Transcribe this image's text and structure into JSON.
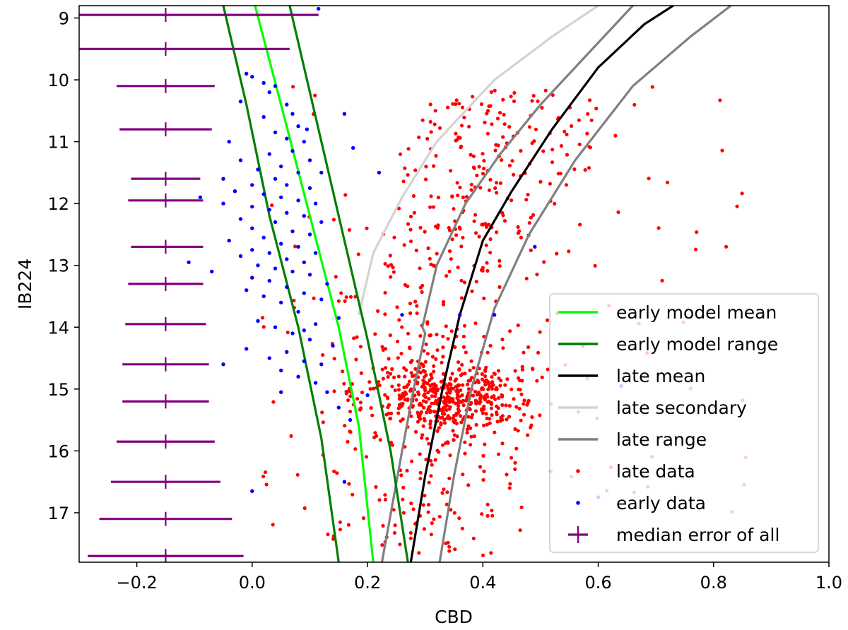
{
  "chart_data": {
    "type": "scatter",
    "xlabel": "CBD",
    "ylabel": "IB224",
    "xlim": [
      -0.3,
      1.0
    ],
    "ylim": [
      17.8,
      8.8
    ],
    "y_inverted": true,
    "grid": false,
    "legend_position": "lower-right",
    "x_ticks": [
      "−0.2",
      "0.0",
      "0.2",
      "0.4",
      "0.6",
      "0.8",
      "1.0"
    ],
    "x_tick_values": [
      -0.2,
      0.0,
      0.2,
      0.4,
      0.6,
      0.8,
      1.0
    ],
    "y_ticks": [
      "9",
      "10",
      "11",
      "12",
      "13",
      "14",
      "15",
      "16",
      "17"
    ],
    "y_tick_values": [
      9,
      10,
      11,
      12,
      13,
      14,
      15,
      16,
      17
    ],
    "colors": {
      "early_mean": "#00ff00",
      "early_range": "#007f00",
      "late_mean": "#000000",
      "late_secondary": "#d3d3d3",
      "late_range": "#808080",
      "late_data": "#ff0000",
      "early_data": "#0000ff",
      "median_error": "#800080"
    },
    "series": [
      {
        "name": "early model mean",
        "kind": "line",
        "color": "#00ff00",
        "points": [
          [
            0.005,
            8.8
          ],
          [
            0.05,
            10.4
          ],
          [
            0.1,
            12.2
          ],
          [
            0.15,
            14.0
          ],
          [
            0.185,
            15.6
          ],
          [
            0.21,
            17.8
          ]
        ]
      },
      {
        "name": "early model range",
        "kind": "line",
        "color": "#007f00",
        "part": "left",
        "points": [
          [
            -0.05,
            8.8
          ],
          [
            -0.01,
            10.4
          ],
          [
            0.03,
            12.2
          ],
          [
            0.08,
            14.0
          ],
          [
            0.12,
            15.8
          ],
          [
            0.15,
            17.8
          ]
        ]
      },
      {
        "name": "early model range",
        "kind": "line",
        "color": "#007f00",
        "part": "right",
        "points": [
          [
            0.065,
            8.8
          ],
          [
            0.1,
            10.2
          ],
          [
            0.15,
            12.2
          ],
          [
            0.2,
            14.2
          ],
          [
            0.24,
            16.0
          ],
          [
            0.27,
            17.8
          ]
        ]
      },
      {
        "name": "late mean",
        "kind": "line",
        "color": "#000000",
        "points": [
          [
            0.275,
            17.8
          ],
          [
            0.3,
            16.4
          ],
          [
            0.33,
            15.0
          ],
          [
            0.355,
            14.0
          ],
          [
            0.36,
            13.8
          ],
          [
            0.4,
            12.6
          ],
          [
            0.45,
            11.8
          ],
          [
            0.52,
            10.8
          ],
          [
            0.6,
            9.8
          ],
          [
            0.68,
            9.1
          ],
          [
            0.73,
            8.8
          ]
        ]
      },
      {
        "name": "late secondary",
        "kind": "line",
        "color": "#d3d3d3",
        "points": [
          [
            0.185,
            13.8
          ],
          [
            0.21,
            12.8
          ],
          [
            0.26,
            11.9
          ],
          [
            0.32,
            11.0
          ],
          [
            0.42,
            10.0
          ],
          [
            0.52,
            9.3
          ],
          [
            0.6,
            8.8
          ]
        ]
      },
      {
        "name": "late range",
        "kind": "line",
        "color": "#808080",
        "part": "left",
        "points": [
          [
            0.225,
            17.8
          ],
          [
            0.26,
            16.0
          ],
          [
            0.28,
            15.0
          ],
          [
            0.3,
            14.1
          ],
          [
            0.295,
            14.0
          ],
          [
            0.32,
            13.0
          ],
          [
            0.37,
            12.0
          ],
          [
            0.43,
            11.2
          ],
          [
            0.5,
            10.4
          ],
          [
            0.58,
            9.6
          ],
          [
            0.66,
            8.8
          ]
        ]
      },
      {
        "name": "late range",
        "kind": "line",
        "color": "#808080",
        "part": "right",
        "points": [
          [
            0.325,
            17.8
          ],
          [
            0.35,
            16.4
          ],
          [
            0.38,
            15.0
          ],
          [
            0.42,
            13.7
          ],
          [
            0.48,
            12.5
          ],
          [
            0.56,
            11.3
          ],
          [
            0.66,
            10.1
          ],
          [
            0.76,
            9.3
          ],
          [
            0.83,
            8.8
          ]
        ]
      }
    ],
    "early_data": [
      [
        0.115,
        8.85
      ],
      [
        -0.01,
        9.9
      ],
      [
        0.0,
        9.95
      ],
      [
        0.02,
        10.05
      ],
      [
        0.04,
        10.1
      ],
      [
        0.03,
        10.2
      ],
      [
        -0.02,
        10.35
      ],
      [
        0.06,
        10.4
      ],
      [
        0.07,
        10.55
      ],
      [
        0.16,
        10.55
      ],
      [
        0.02,
        10.6
      ],
      [
        0.08,
        10.75
      ],
      [
        0.095,
        10.8
      ],
      [
        0.04,
        10.85
      ],
      [
        0.06,
        10.95
      ],
      [
        0.09,
        11.0
      ],
      [
        -0.04,
        11.0
      ],
      [
        0.175,
        11.1
      ],
      [
        0.07,
        11.15
      ],
      [
        0.03,
        11.2
      ],
      [
        -0.02,
        11.3
      ],
      [
        0.1,
        11.3
      ],
      [
        0.05,
        11.4
      ],
      [
        0.01,
        11.45
      ],
      [
        0.08,
        11.5
      ],
      [
        0.12,
        11.5
      ],
      [
        0.22,
        11.5
      ],
      [
        -0.05,
        11.6
      ],
      [
        0.04,
        11.6
      ],
      [
        0.0,
        11.7
      ],
      [
        0.06,
        11.7
      ],
      [
        0.1,
        11.75
      ],
      [
        -0.03,
        11.8
      ],
      [
        0.02,
        11.85
      ],
      [
        0.05,
        11.9
      ],
      [
        -0.09,
        11.9
      ],
      [
        0.08,
        11.95
      ],
      [
        0.11,
        12.0
      ],
      [
        -0.05,
        12.0
      ],
      [
        0.0,
        12.05
      ],
      [
        0.03,
        12.1
      ],
      [
        0.06,
        12.15
      ],
      [
        0.09,
        12.2
      ],
      [
        -0.02,
        12.25
      ],
      [
        0.04,
        12.3
      ],
      [
        0.12,
        12.3
      ],
      [
        0.0,
        12.4
      ],
      [
        0.07,
        12.45
      ],
      [
        0.1,
        12.5
      ],
      [
        0.02,
        12.55
      ],
      [
        -0.04,
        12.6
      ],
      [
        0.05,
        12.65
      ],
      [
        0.08,
        12.7
      ],
      [
        0.49,
        12.7
      ],
      [
        0.0,
        12.75
      ],
      [
        0.03,
        12.8
      ],
      [
        0.11,
        12.8
      ],
      [
        -0.02,
        12.85
      ],
      [
        0.06,
        12.9
      ],
      [
        0.09,
        12.95
      ],
      [
        -0.11,
        12.95
      ],
      [
        0.01,
        13.0
      ],
      [
        0.04,
        13.05
      ],
      [
        -0.07,
        13.1
      ],
      [
        0.07,
        13.1
      ],
      [
        0.1,
        13.15
      ],
      [
        0.0,
        13.2
      ],
      [
        0.03,
        13.25
      ],
      [
        0.13,
        13.3
      ],
      [
        0.06,
        13.35
      ],
      [
        -0.01,
        13.4
      ],
      [
        0.09,
        13.45
      ],
      [
        0.02,
        13.5
      ],
      [
        0.12,
        13.55
      ],
      [
        0.05,
        13.6
      ],
      [
        0.26,
        13.8
      ],
      [
        0.08,
        13.75
      ],
      [
        0.15,
        13.85
      ],
      [
        0.01,
        13.9
      ],
      [
        0.11,
        13.95
      ],
      [
        0.04,
        14.0
      ],
      [
        0.07,
        14.1
      ],
      [
        0.1,
        14.2
      ],
      [
        0.14,
        14.3
      ],
      [
        -0.01,
        14.35
      ],
      [
        0.06,
        14.4
      ],
      [
        0.03,
        14.5
      ],
      [
        0.09,
        14.55
      ],
      [
        0.12,
        14.6
      ],
      [
        -0.05,
        14.6
      ],
      [
        0.05,
        14.7
      ],
      [
        0.08,
        14.8
      ],
      [
        0.11,
        14.9
      ],
      [
        0.13,
        15.05
      ],
      [
        0.2,
        15.1
      ],
      [
        0.15,
        15.3
      ],
      [
        0.17,
        15.5
      ],
      [
        0.16,
        16.5
      ],
      [
        0.0,
        16.65
      ],
      [
        0.6,
        16.75
      ],
      [
        0.64,
        14.95
      ],
      [
        0.42,
        13.8
      ],
      [
        0.36,
        13.8
      ],
      [
        0.05,
        15.05
      ],
      [
        0.09,
        14.05
      ]
    ],
    "median_error": [
      {
        "y": 8.95,
        "xerr_left": 0.29,
        "xerr_right": 0.265
      },
      {
        "y": 9.5,
        "xerr_left": 0.29,
        "xerr_right": 0.215
      },
      {
        "y": 10.1,
        "xerr_left": 0.085,
        "xerr_right": 0.085
      },
      {
        "y": 10.8,
        "xerr_left": 0.08,
        "xerr_right": 0.08
      },
      {
        "y": 11.6,
        "xerr_left": 0.06,
        "xerr_right": 0.06
      },
      {
        "y": 11.95,
        "xerr_left": 0.065,
        "xerr_right": 0.065
      },
      {
        "y": 12.7,
        "xerr_left": 0.06,
        "xerr_right": 0.065
      },
      {
        "y": 13.3,
        "xerr_left": 0.065,
        "xerr_right": 0.065
      },
      {
        "y": 13.95,
        "xerr_left": 0.07,
        "xerr_right": 0.07
      },
      {
        "y": 14.6,
        "xerr_left": 0.075,
        "xerr_right": 0.075
      },
      {
        "y": 15.2,
        "xerr_left": 0.075,
        "xerr_right": 0.075
      },
      {
        "y": 15.85,
        "xerr_left": 0.085,
        "xerr_right": 0.085
      },
      {
        "y": 16.5,
        "xerr_left": 0.095,
        "xerr_right": 0.095
      },
      {
        "y": 17.1,
        "xerr_left": 0.115,
        "xerr_right": 0.115
      },
      {
        "y": 17.7,
        "xerr_left": 0.135,
        "xerr_right": 0.135
      }
    ],
    "median_error_x": -0.15,
    "legend": [
      {
        "label": "early model mean",
        "kind": "line",
        "color": "#00ff00"
      },
      {
        "label": "early model range",
        "kind": "line",
        "color": "#007f00"
      },
      {
        "label": "late mean",
        "kind": "line",
        "color": "#000000"
      },
      {
        "label": "late secondary",
        "kind": "line",
        "color": "#d3d3d3"
      },
      {
        "label": "late range",
        "kind": "line",
        "color": "#808080"
      },
      {
        "label": "late data",
        "kind": "dot",
        "color": "#ff0000"
      },
      {
        "label": "early data",
        "kind": "dot",
        "color": "#0000ff"
      },
      {
        "label": "median error of all",
        "kind": "cross",
        "color": "#800080"
      }
    ]
  }
}
